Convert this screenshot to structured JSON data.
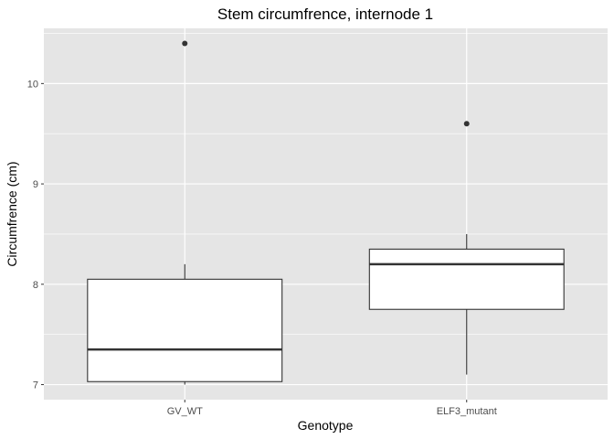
{
  "chart_data": {
    "type": "boxplot",
    "title": "Stem circumfrence, internode 1",
    "xlabel": "Genotype",
    "ylabel": "Circumfrence (cm)",
    "categories": [
      "GV_WT",
      "ELF3_mutant"
    ],
    "ylim": [
      6.85,
      10.55
    ],
    "yticks": [
      7,
      8,
      9,
      10
    ],
    "grid": true,
    "panel_background": "#e5e5e5",
    "grid_color": "#ffffff",
    "box_fill": "#ffffff",
    "line_color": "#333333",
    "boxes": [
      {
        "category": "GV_WT",
        "whisker_low": 7.0,
        "q1": 7.03,
        "median": 7.35,
        "q3": 8.05,
        "whisker_high": 8.2,
        "outliers": [
          10.4
        ]
      },
      {
        "category": "ELF3_mutant",
        "whisker_low": 7.1,
        "q1": 7.75,
        "median": 8.2,
        "q3": 8.35,
        "whisker_high": 8.5,
        "outliers": [
          9.6
        ]
      }
    ]
  }
}
